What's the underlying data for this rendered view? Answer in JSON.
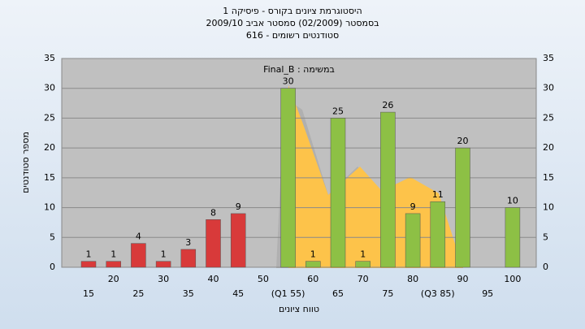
{
  "chart_data": {
    "type": "bar",
    "title": "היסטוגרמת ציונים בקורס - פיסיקה 1",
    "subtitle": "בסמסטר  (02/2009)  סמסטר אביב  2009/10",
    "subtitle2": "סטודנטים רשומים - 616",
    "annotation": "במשימה : Final_B",
    "x_label": "טווח ציונים",
    "y_label": "מספר סטודנטים",
    "categories": [
      "15",
      "20",
      "25",
      "30",
      "35",
      "40",
      "45",
      "50",
      "(Q1 55)",
      "60",
      "65",
      "70",
      "75",
      "80",
      "(Q3 85)",
      "90",
      "95",
      "100"
    ],
    "values": [
      1,
      1,
      4,
      1,
      3,
      8,
      9,
      0,
      30,
      1,
      25,
      1,
      26,
      9,
      11,
      20,
      0,
      10
    ],
    "colors": [
      "#d83a3a",
      "#d83a3a",
      "#d83a3a",
      "#d83a3a",
      "#d83a3a",
      "#d83a3a",
      "#d83a3a",
      "#d83a3a",
      "#8dc045",
      "#8dc045",
      "#8dc045",
      "#8dc045",
      "#8dc045",
      "#8dc045",
      "#8dc045",
      "#8dc045",
      "#8dc045",
      "#8dc045"
    ],
    "ylim": [
      0,
      35
    ],
    "yticks": [
      0,
      5,
      10,
      15,
      20,
      25,
      30,
      35
    ],
    "grid": true
  }
}
